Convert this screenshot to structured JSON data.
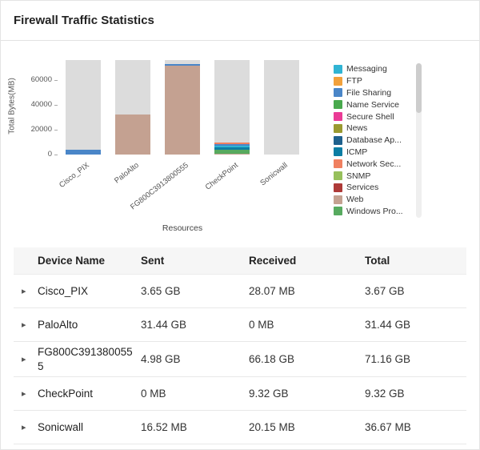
{
  "panel": {
    "title": "Firewall Traffic Statistics"
  },
  "chart_data": {
    "type": "bar",
    "stacked": true,
    "xlabel": "Resources",
    "ylabel": "Total Bytes(MB)",
    "ylim": [
      0,
      76000
    ],
    "yticks": [
      0,
      20000,
      40000,
      60000
    ],
    "grid": false,
    "legend_position": "right",
    "categories": [
      "Cisco_PIX",
      "PaloAlto",
      "FG800C3913800555",
      "CheckPoint",
      "Sonicwall"
    ],
    "background_bar": {
      "color": "#dcdcdc",
      "value": 76000
    },
    "series": [
      {
        "name": "Messaging",
        "color": "#30b4d4",
        "values": [
          0,
          0,
          0,
          1500,
          0
        ]
      },
      {
        "name": "FTP",
        "color": "#f2a13c",
        "values": [
          0,
          0,
          0,
          0,
          0
        ]
      },
      {
        "name": "File Sharing",
        "color": "#4a86c8",
        "values": [
          3700,
          0,
          1400,
          1700,
          0
        ]
      },
      {
        "name": "Name Service",
        "color": "#49a94d",
        "values": [
          0,
          0,
          0,
          0,
          0
        ]
      },
      {
        "name": "Secure Shell",
        "color": "#ea3b96",
        "values": [
          0,
          0,
          0,
          0,
          0
        ]
      },
      {
        "name": "News",
        "color": "#9a9a30",
        "values": [
          0,
          0,
          0,
          0,
          0
        ]
      },
      {
        "name": "Database Ap...",
        "color": "#1f618d",
        "values": [
          0,
          0,
          0,
          0,
          0
        ]
      },
      {
        "name": "ICMP",
        "color": "#0c7ea4",
        "values": [
          0,
          0,
          0,
          1900,
          0
        ]
      },
      {
        "name": "Network Sec...",
        "color": "#f08060",
        "values": [
          0,
          0,
          0,
          800,
          0
        ]
      },
      {
        "name": "SNMP",
        "color": "#97c05c",
        "values": [
          0,
          0,
          0,
          0,
          0
        ]
      },
      {
        "name": "Services",
        "color": "#ae3a38",
        "values": [
          0,
          0,
          0,
          0,
          0
        ]
      },
      {
        "name": "Web",
        "color": "#c4a191",
        "values": [
          0,
          32200,
          71500,
          700,
          0
        ]
      },
      {
        "name": "Windows Pro...",
        "color": "#57aa5f",
        "values": [
          0,
          0,
          0,
          2900,
          0
        ]
      }
    ],
    "stack_order": [
      "Web",
      "Windows Pro...",
      "ICMP",
      "Messaging",
      "File Sharing",
      "Network Sec...",
      "FTP",
      "Name Service",
      "Secure Shell",
      "News",
      "Database Ap...",
      "SNMP",
      "Services"
    ]
  },
  "table": {
    "columns": [
      "Device Name",
      "Sent",
      "Received",
      "Total"
    ],
    "expand_icon": "▸",
    "rows": [
      {
        "device": "Cisco_PIX",
        "sent": "3.65 GB",
        "received": "28.07 MB",
        "total": "3.67 GB"
      },
      {
        "device": "PaloAlto",
        "sent": "31.44 GB",
        "received": "0 MB",
        "total": "31.44 GB"
      },
      {
        "device": "FG800C3913800555",
        "sent": "4.98 GB",
        "received": "66.18 GB",
        "total": "71.16 GB"
      },
      {
        "device": "CheckPoint",
        "sent": "0 MB",
        "received": "9.32 GB",
        "total": "9.32 GB"
      },
      {
        "device": "Sonicwall",
        "sent": "16.52 MB",
        "received": "20.15 MB",
        "total": "36.67 MB"
      }
    ]
  }
}
